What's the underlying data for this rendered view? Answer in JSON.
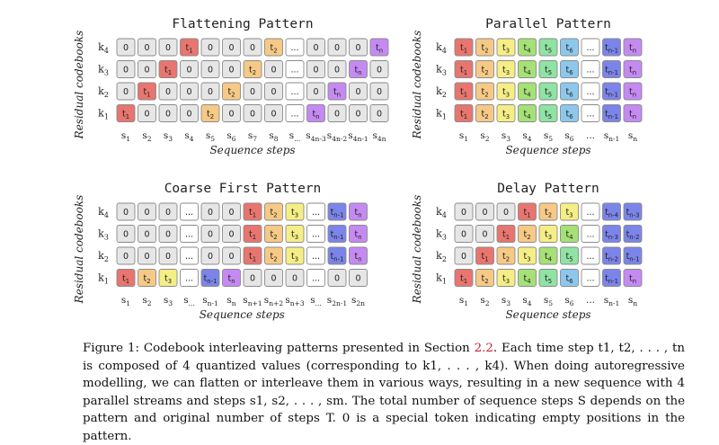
{
  "figure": {
    "y_axis_label": "Residual codebooks",
    "x_axis_label": "Sequence steps",
    "codebook_labels": [
      "k4",
      "k3",
      "k2",
      "k1"
    ],
    "colors": {
      "empty": "#e6e6e6",
      "ellipsis": "#ffffff",
      "t1": "#e8756f",
      "t2": "#f6c986",
      "t3": "#f5ee86",
      "t4": "#a5e176",
      "t5": "#8fe3a3",
      "t6": "#8dc8ec",
      "tn1": "#7b84e9",
      "tn": "#c58af2"
    },
    "panels": [
      {
        "title": "Flattening Pattern",
        "rows": [
          [
            "0",
            "0",
            "0",
            "t1",
            "0",
            "0",
            "0",
            "t2",
            "...",
            "0",
            "0",
            "0",
            "tn"
          ],
          [
            "0",
            "0",
            "t1",
            "0",
            "0",
            "0",
            "t2",
            "0",
            "...",
            "0",
            "0",
            "tn",
            "0"
          ],
          [
            "0",
            "t1",
            "0",
            "0",
            "0",
            "t2",
            "0",
            "0",
            "...",
            "0",
            "tn",
            "0",
            "0"
          ],
          [
            "t1",
            "0",
            "0",
            "0",
            "t2",
            "0",
            "0",
            "0",
            "...",
            "tn",
            "0",
            "0",
            "0"
          ]
        ],
        "steps": [
          "s1",
          "s2",
          "s3",
          "s4",
          "s5",
          "s6",
          "s7",
          "s8",
          "s...",
          "s4n-3",
          "s4n-2",
          "s4n-1",
          "s4n"
        ]
      },
      {
        "title": "Parallel Pattern",
        "rows": [
          [
            "t1",
            "t2",
            "t3",
            "t4",
            "t5",
            "t6",
            "...",
            "tn-1",
            "tn"
          ],
          [
            "t1",
            "t2",
            "t3",
            "t4",
            "t5",
            "t6",
            "...",
            "tn-1",
            "tn"
          ],
          [
            "t1",
            "t2",
            "t3",
            "t4",
            "t5",
            "t6",
            "...",
            "tn-1",
            "tn"
          ],
          [
            "t1",
            "t2",
            "t3",
            "t4",
            "t5",
            "t6",
            "...",
            "tn-1",
            "tn"
          ]
        ],
        "steps": [
          "s1",
          "s2",
          "s3",
          "s4",
          "s5",
          "s6",
          "...",
          "sn-1",
          "sn"
        ]
      },
      {
        "title": "Coarse First Pattern",
        "rows": [
          [
            "0",
            "0",
            "0",
            "...",
            "0",
            "0",
            "t1",
            "t2",
            "t3",
            "...",
            "tn-1",
            "tn"
          ],
          [
            "0",
            "0",
            "0",
            "...",
            "0",
            "0",
            "t1",
            "t2",
            "t3",
            "...",
            "tn-1",
            "tn"
          ],
          [
            "0",
            "0",
            "0",
            "...",
            "0",
            "0",
            "t1",
            "t2",
            "t3",
            "...",
            "tn-1",
            "tn"
          ],
          [
            "t1",
            "t2",
            "t3",
            "...",
            "tn-1",
            "tn",
            "0",
            "0",
            "0",
            "...",
            "0",
            "0"
          ]
        ],
        "steps": [
          "s1",
          "s2",
          "s3",
          "s...",
          "sn-1",
          "sn",
          "sn+1",
          "sn+2",
          "sn+3",
          "s...",
          "s2n-1",
          "s2n"
        ]
      },
      {
        "title": "Delay Pattern",
        "rows": [
          [
            "0",
            "0",
            "0",
            "t1",
            "t2",
            "t3",
            "...",
            "tn-4",
            "tn-3"
          ],
          [
            "0",
            "0",
            "t1",
            "t2",
            "t3",
            "t4",
            "...",
            "tn-3",
            "tn-2"
          ],
          [
            "0",
            "t1",
            "t2",
            "t3",
            "t4",
            "t5",
            "...",
            "tn-2",
            "tn-1"
          ],
          [
            "t1",
            "t2",
            "t3",
            "t4",
            "t5",
            "t6",
            "...",
            "tn-1",
            "tn"
          ]
        ],
        "steps": [
          "s1",
          "s2",
          "s3",
          "s4",
          "s5",
          "s6",
          "...",
          "sn-1",
          "sn"
        ]
      }
    ]
  },
  "caption": {
    "label": "Figure 1:",
    "text_1": " Codebook interleaving patterns presented in Section ",
    "section_ref": "2.2",
    "text_2": ". Each time step t1, t2, . . . , tn is composed of 4 quantized values (corresponding to k1, . . . , k4). When doing autoregressive modelling, we can flatten or interleave them in various ways, resulting in a new sequence with 4 parallel streams and steps s1, s2, . . . , sm. The total number of sequence steps S depends on the pattern and original number of steps T. 0 is a special token indicating empty positions in the pattern."
  }
}
